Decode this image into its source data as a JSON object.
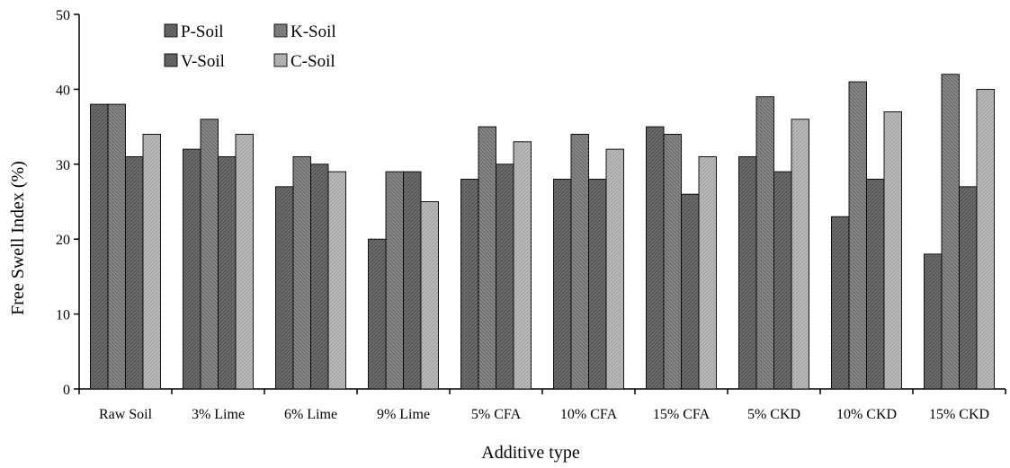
{
  "chart_data": {
    "type": "bar",
    "xlabel": "Additive type",
    "ylabel": "Free Swell Index (%)",
    "ylim": [
      0,
      50
    ],
    "yticks": [
      0,
      10,
      20,
      30,
      40,
      50
    ],
    "grid": false,
    "legend_position": "top-left",
    "categories": [
      "Raw Soil",
      "3% Lime",
      "6% Lime",
      "9% Lime",
      "5% CFA",
      "10% CFA",
      "15% CFA",
      "5% CKD",
      "10% CKD",
      "15% CKD"
    ],
    "series": [
      {
        "name": "P-Soil",
        "color": "#7a7a7a",
        "values": [
          38,
          32,
          27,
          20,
          28,
          28,
          35,
          31,
          23,
          18
        ],
        "labels": [
          "",
          "",
          "",
          "",
          "",
          "",
          "",
          "",
          "",
          ""
        ]
      },
      {
        "name": "K-Soil",
        "color": "#8c8c8c",
        "values": [
          38,
          36,
          31,
          29,
          35,
          34,
          34,
          39,
          41,
          42
        ],
        "labels": [
          "",
          "",
          "",
          "",
          "",
          "",
          "",
          "",
          "",
          ""
        ]
      },
      {
        "name": "V-Soil",
        "color": "#7f7f7f",
        "values": [
          31,
          31,
          30,
          29,
          30,
          28,
          26,
          29,
          28,
          27
        ],
        "labels": [
          "",
          "",
          "",
          "",
          "",
          "",
          "",
          "",
          "",
          ""
        ]
      },
      {
        "name": "C-Soil",
        "color": "#b8b8b8",
        "values": [
          34,
          34,
          29,
          25,
          33,
          32,
          31,
          36,
          37,
          40
        ],
        "labels": [
          "",
          "",
          "",
          "",
          "",
          "",
          "",
          "",
          "",
          ""
        ]
      }
    ],
    "legend": [
      "P-Soil",
      "K-Soil",
      "V-Soil",
      "C-Soil"
    ]
  }
}
